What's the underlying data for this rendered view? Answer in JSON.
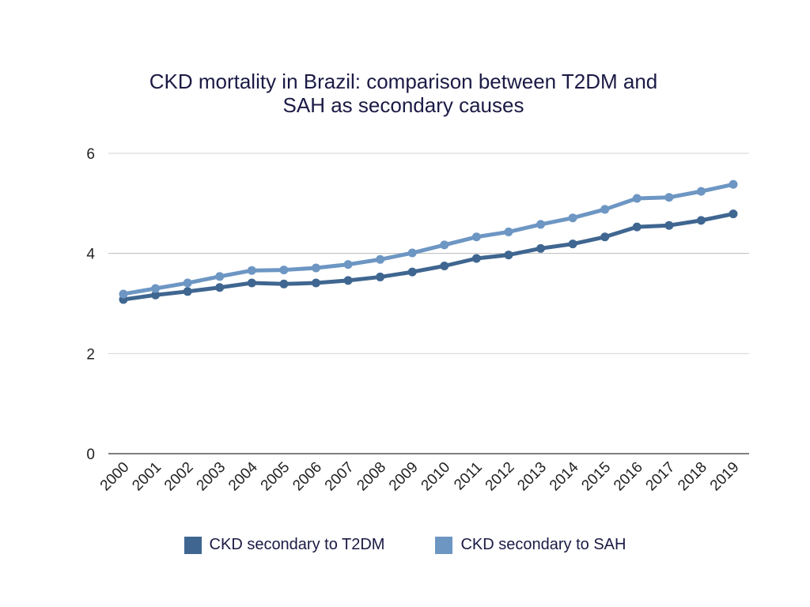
{
  "chart_data": {
    "type": "line",
    "title_lines": [
      "CKD mortality in Brazil: comparison between T2DM and",
      "SAH as secondary causes"
    ],
    "xlabel": "",
    "ylabel": "",
    "categories": [
      "2000",
      "2001",
      "2002",
      "2003",
      "2004",
      "2005",
      "2006",
      "2007",
      "2008",
      "2009",
      "2010",
      "2011",
      "2012",
      "2013",
      "2014",
      "2015",
      "2016",
      "2017",
      "2018",
      "2019"
    ],
    "ylim": [
      0,
      6
    ],
    "yticks": [
      "0",
      "2",
      "4",
      "6"
    ],
    "grid": true,
    "legend_position": "bottom",
    "series": [
      {
        "name": "CKD secondary to T2DM",
        "color": "#3f6690",
        "values": [
          3.08,
          3.17,
          3.24,
          3.32,
          3.41,
          3.39,
          3.41,
          3.46,
          3.53,
          3.63,
          3.75,
          3.9,
          3.97,
          4.1,
          4.19,
          4.33,
          4.53,
          4.56,
          4.66,
          4.79
        ]
      },
      {
        "name": "CKD secondary to SAH",
        "color": "#6d96c3",
        "values": [
          3.19,
          3.3,
          3.41,
          3.54,
          3.66,
          3.67,
          3.71,
          3.78,
          3.88,
          4.01,
          4.17,
          4.33,
          4.43,
          4.58,
          4.71,
          4.88,
          5.1,
          5.12,
          5.24,
          5.38
        ]
      }
    ]
  }
}
